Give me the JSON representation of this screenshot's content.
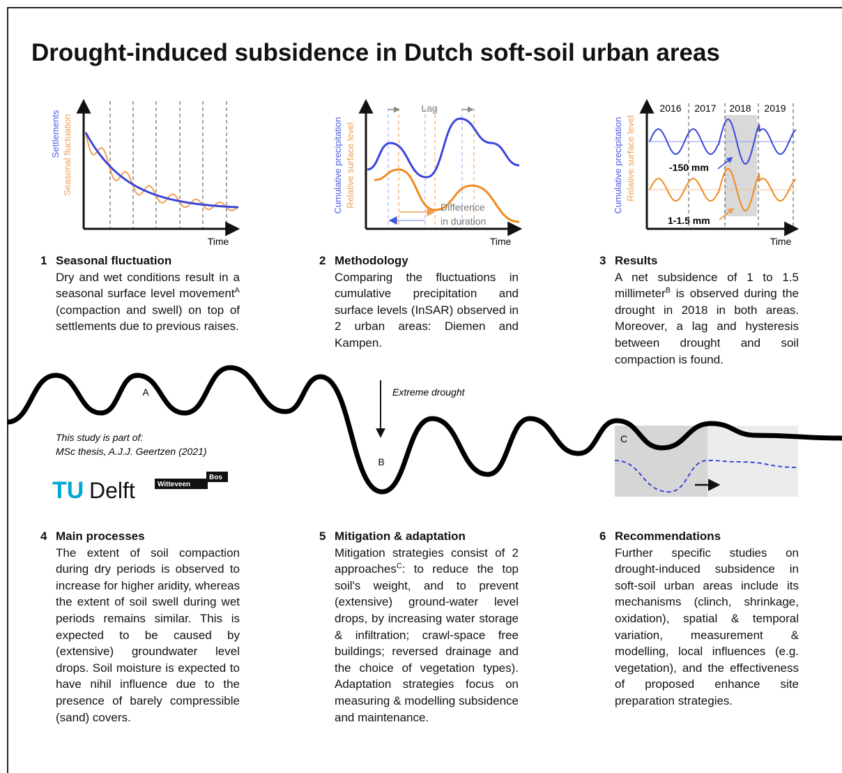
{
  "title": "Drought-induced subsidence in Dutch soft-soil urban areas",
  "figures": {
    "fig1": {
      "y_label_1": "Settlements",
      "y_label_2": "Seasonal fluctuation",
      "x_label": "Time"
    },
    "fig2": {
      "y_label_1": "Cumulative precipitation",
      "y_label_2": "Relative surface level",
      "lag": "Lag",
      "difference": "Difference",
      "duration": "in duration",
      "x_label": "Time"
    },
    "fig3": {
      "y_label_1": "Cumulative precipitation",
      "y_label_2": "Relative surface level",
      "years": [
        "2016",
        "2017",
        "2018",
        "2019"
      ],
      "precip_note": "-150 mm",
      "surface_note": "1-1.5 mm",
      "x_label": "Time"
    }
  },
  "wave": {
    "a": "A",
    "b": "B",
    "c": "C",
    "drought": "Extreme drought"
  },
  "credit": {
    "line1": "This study is part of:",
    "line2": "MSc thesis, A.J.J. Geertzen (2021)"
  },
  "logos": {
    "tu": "TU",
    "delft": "Delft",
    "witteveen": "Witteveen",
    "bos": "Bos"
  },
  "panels": [
    {
      "number": "1",
      "heading": "Seasonal fluctuation",
      "before": "Dry and wet conditions result in a seasonal surface level movement",
      "sup": "A",
      "after": " (compaction and swell) on top of settlements due to previous raises."
    },
    {
      "number": "2",
      "heading": "Methodology",
      "body": "Comparing the fluctuations in cumulative precipitation and surface levels (InSAR) observed in 2 urban areas: Diemen and Kampen."
    },
    {
      "number": "3",
      "heading": "Results",
      "before": "A net subsidence of 1 to 1.5 millimeter",
      "sup": "B",
      "after": " is observed during the drought in 2018 in both areas. Moreover, a lag and hysteresis between drought and soil compaction is found."
    },
    {
      "number": "4",
      "heading": "Main processes",
      "body": "The extent of soil compaction during dry periods is observed to increase for higher aridity, whereas the extent of soil swell during wet periods remains similar. This is expected to be caused by (extensive) groundwater level drops. Soil moisture is expected to have nihil influence due to the presence of barely compressible (sand) covers."
    },
    {
      "number": "5",
      "heading": "Mitigation & adaptation",
      "before": "Mitigation strategies consist of 2 approaches",
      "sup": "C",
      "after": ": to reduce the top soil's weight, and to prevent (extensive) ground-water level drops, by increasing water storage & infiltration; crawl-space free buildings; reversed drainage and the choice of vegetation types). Adaptation strategies focus on measuring & modelling subsidence and maintenance."
    },
    {
      "number": "6",
      "heading": "Recommendations",
      "body": "Further specific studies on drought-induced subsidence in soft-soil urban areas include its mechanisms (clinch, shrinkage, oxidation), spatial & temporal variation, measurement & modelling, local influences (e.g. vegetation), and the effectiveness of proposed enhance site preparation strategies."
    }
  ]
}
